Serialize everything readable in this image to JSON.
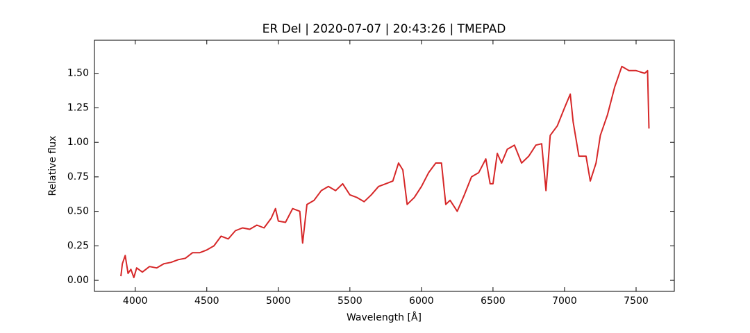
{
  "chart_data": {
    "type": "line",
    "title": "ER Del | 2020-07-07 | 20:43:26 | TMEPAD",
    "x_label": "Wavelength [Å]",
    "y_label": "Relative flux",
    "xlim": [
      3715,
      7767
    ],
    "ylim": [
      -0.08,
      1.74
    ],
    "xticks": [
      4000,
      4500,
      5000,
      5500,
      6000,
      6500,
      7000,
      7500
    ],
    "yticks": [
      {
        "value": 0,
        "label": "0.00"
      },
      {
        "value": 0.25,
        "label": "0.25"
      },
      {
        "value": 0.5,
        "label": "0.50"
      },
      {
        "value": 0.75,
        "label": "0.75"
      },
      {
        "value": 1,
        "label": "1.00"
      },
      {
        "value": 1.25,
        "label": "1.25"
      },
      {
        "value": 1.5,
        "label": "1.50"
      }
    ],
    "series": [
      {
        "color": "#d62728",
        "x": [
          3900,
          3910,
          3930,
          3950,
          3970,
          3990,
          4010,
          4050,
          4100,
          4150,
          4200,
          4250,
          4300,
          4350,
          4400,
          4450,
          4500,
          4550,
          4600,
          4650,
          4700,
          4750,
          4800,
          4850,
          4900,
          4950,
          4980,
          5000,
          5050,
          5100,
          5150,
          5170,
          5200,
          5250,
          5300,
          5350,
          5400,
          5450,
          5500,
          5550,
          5600,
          5650,
          5700,
          5750,
          5800,
          5840,
          5870,
          5900,
          5950,
          6000,
          6050,
          6100,
          6140,
          6170,
          6200,
          6250,
          6300,
          6350,
          6400,
          6450,
          6480,
          6500,
          6530,
          6560,
          6600,
          6650,
          6700,
          6750,
          6800,
          6840,
          6870,
          6900,
          6950,
          7000,
          7040,
          7060,
          7100,
          7150,
          7180,
          7220,
          7250,
          7300,
          7350,
          7400,
          7450,
          7500,
          7560,
          7580,
          7590
        ],
        "values": [
          0.03,
          0.12,
          0.18,
          0.05,
          0.08,
          0.02,
          0.09,
          0.06,
          0.1,
          0.09,
          0.12,
          0.13,
          0.15,
          0.16,
          0.2,
          0.2,
          0.22,
          0.25,
          0.32,
          0.3,
          0.36,
          0.38,
          0.37,
          0.4,
          0.38,
          0.45,
          0.52,
          0.43,
          0.42,
          0.52,
          0.5,
          0.27,
          0.55,
          0.58,
          0.65,
          0.68,
          0.65,
          0.7,
          0.62,
          0.6,
          0.57,
          0.62,
          0.68,
          0.7,
          0.72,
          0.85,
          0.8,
          0.55,
          0.6,
          0.68,
          0.78,
          0.85,
          0.85,
          0.55,
          0.58,
          0.5,
          0.62,
          0.75,
          0.78,
          0.88,
          0.7,
          0.7,
          0.92,
          0.85,
          0.95,
          0.98,
          0.85,
          0.9,
          0.98,
          0.99,
          0.65,
          1.05,
          1.12,
          1.25,
          1.35,
          1.15,
          0.9,
          0.9,
          0.72,
          0.85,
          1.05,
          1.2,
          1.4,
          1.55,
          1.52,
          1.52,
          1.5,
          1.52,
          1.1
        ]
      }
    ]
  }
}
